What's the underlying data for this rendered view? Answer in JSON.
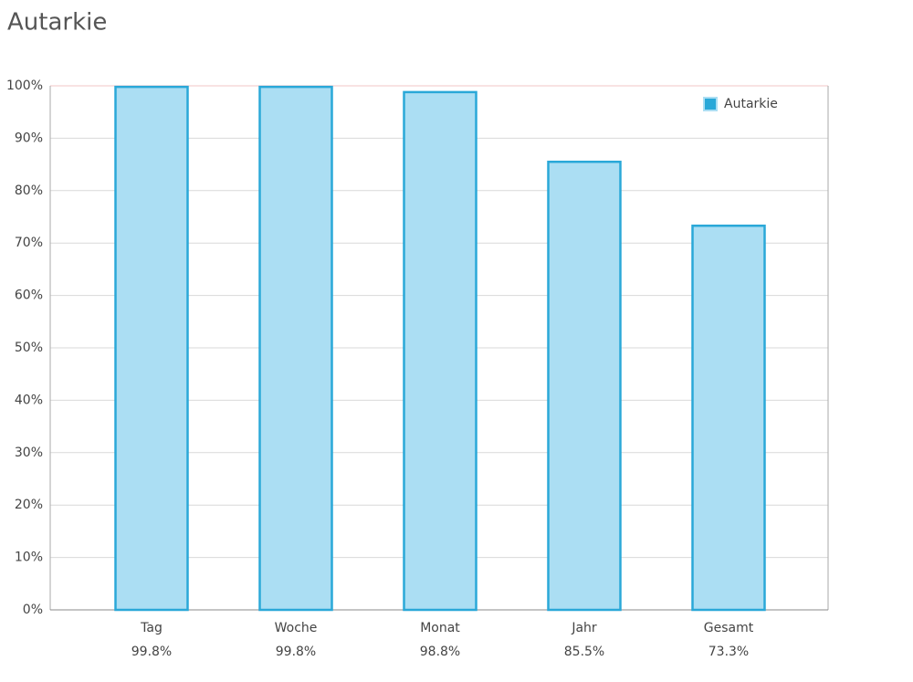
{
  "chart_data": {
    "type": "bar",
    "title": "Autarkie",
    "categories": [
      "Tag",
      "Woche",
      "Monat",
      "Jahr",
      "Gesamt"
    ],
    "series": [
      {
        "name": "Autarkie",
        "color": "#2aa8d8",
        "fill": "#abdef3",
        "values": [
          99.8,
          99.8,
          98.8,
          85.5,
          73.3
        ],
        "value_labels": [
          "99.8%",
          "99.8%",
          "98.8%",
          "85.5%",
          "73.3%"
        ]
      }
    ],
    "ylim": [
      0,
      100
    ],
    "yticks": [
      {
        "value": 0,
        "label": "0%"
      },
      {
        "value": 10,
        "label": "10%"
      },
      {
        "value": 20,
        "label": "20%"
      },
      {
        "value": 30,
        "label": "30%"
      },
      {
        "value": 40,
        "label": "40%"
      },
      {
        "value": 50,
        "label": "50%"
      },
      {
        "value": 60,
        "label": "60%"
      },
      {
        "value": 70,
        "label": "70%"
      },
      {
        "value": 80,
        "label": "80%"
      },
      {
        "value": 90,
        "label": "90%"
      },
      {
        "value": 100,
        "label": "100%"
      }
    ],
    "grid": true,
    "legend": "upper right"
  }
}
